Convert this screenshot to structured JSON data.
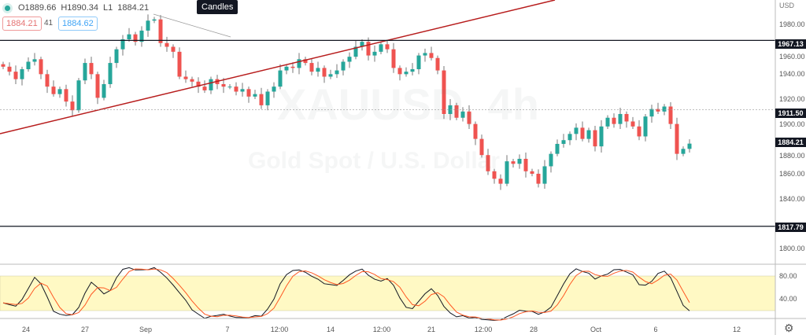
{
  "symbol_watermark": "XAUUSD, 4h",
  "description_watermark": "Gold Spot / U.S. Dollar",
  "legend": {
    "open": "O1889.66",
    "high": "H1890.34",
    "low": "L1",
    "close": "1884.21"
  },
  "tooltip": "Candles",
  "bid": "1884.21",
  "spread": "41",
  "ask": "1884.62",
  "currency": "USD",
  "colors": {
    "up": "#26a69a",
    "down": "#ef5350",
    "trendline": "#b71c1c",
    "band": "#fff9c4",
    "k": "#131722",
    "d": "#ff5722"
  },
  "price_axis": {
    "labels": [
      "1980.00",
      "1960.00",
      "1940.00",
      "1920.00",
      "1900.00",
      "1880.00",
      "1860.00",
      "1840.00",
      "1800.00"
    ],
    "values": [
      1980,
      1960,
      1940,
      1920,
      1900,
      1880,
      1860,
      1840,
      1800
    ]
  },
  "price_tags": {
    "level_high": "1967.13",
    "level_mid": "1911.50",
    "last": "1884.21",
    "level_low": "1817.79"
  },
  "stoch_axis": {
    "labels": [
      "80.00",
      "40.00"
    ]
  },
  "time_axis": [
    "24",
    "27",
    "Sep",
    "7",
    "12:00",
    "14",
    "12:00",
    "21",
    "12:00",
    "28",
    "Oct",
    "6",
    "12"
  ],
  "chart_data": {
    "type": "candlestick",
    "ylim": [
      1790,
      2000
    ],
    "closes": [
      1946,
      1942,
      1936,
      1944,
      1950,
      1952,
      1940,
      1930,
      1924,
      1928,
      1918,
      1911,
      1935,
      1949,
      1940,
      1921,
      1932,
      1949,
      1960,
      1968,
      1972,
      1966,
      1975,
      1983,
      1984,
      1965,
      1962,
      1958,
      1938,
      1936,
      1934,
      1930,
      1927,
      1936,
      1932,
      1930,
      1930,
      1926,
      1928,
      1922,
      1924,
      1915,
      1926,
      1930,
      1943,
      1946,
      1945,
      1952,
      1949,
      1942,
      1945,
      1938,
      1940,
      1943,
      1950,
      1954,
      1962,
      1966,
      1955,
      1958,
      1964,
      1960,
      1945,
      1940,
      1942,
      1944,
      1955,
      1957,
      1953,
      1943,
      1908,
      1915,
      1905,
      1910,
      1900,
      1888,
      1875,
      1862,
      1856,
      1852,
      1870,
      1868,
      1872,
      1862,
      1860,
      1852,
      1866,
      1876,
      1884,
      1887,
      1892,
      1897,
      1888,
      1895,
      1882,
      1898,
      1905,
      1900,
      1908,
      1902,
      1898,
      1890,
      1906,
      1912,
      1910,
      1914,
      1900,
      1876,
      1880,
      1884.21
    ],
    "levels": [
      1967.13,
      1911.5,
      1817.79
    ],
    "stochastic": {
      "band": [
        20,
        80
      ]
    }
  }
}
